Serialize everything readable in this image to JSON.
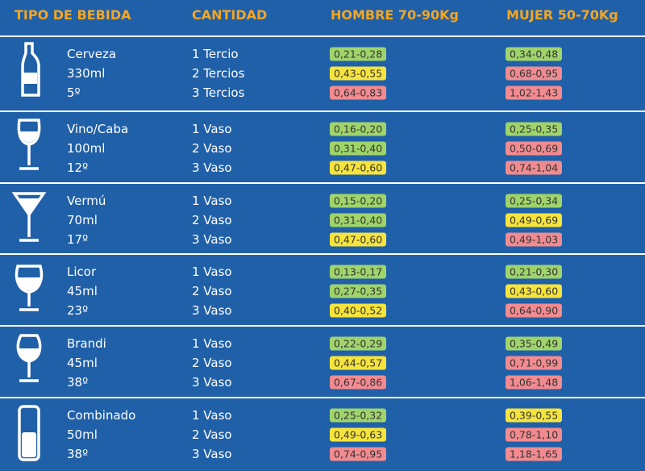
{
  "headers": [
    "TIPO DE BEBIDA",
    "CANTIDAD",
    "HOMBRE 70-90Kg",
    "MUJER 50-70Kg"
  ],
  "rows": [
    {
      "drink": [
        "Cerveza",
        "330ml",
        "5º"
      ],
      "quantities": [
        "1 Tercio",
        "2 Tercios",
        "3 Tercios"
      ],
      "men": [
        {
          "text": "0,21-0,28",
          "color": "#9fd46b"
        },
        {
          "text": "0,43-0,55",
          "color": "#f6e43c"
        },
        {
          "text": "0,64-0,83",
          "color": "#f28b90"
        }
      ],
      "women": [
        {
          "text": "0,34-0,48",
          "color": "#9fd46b"
        },
        {
          "text": "0,68-0,95",
          "color": "#f28b90"
        },
        {
          "text": "1,02-1,43",
          "color": "#f28b90"
        }
      ]
    },
    {
      "drink": [
        "Vino/Caba",
        "100ml",
        "12º"
      ],
      "quantities": [
        "1 Vaso",
        "2 Vaso",
        "3 Vaso"
      ],
      "men": [
        {
          "text": "0,16-0,20",
          "color": "#9fd46b"
        },
        {
          "text": "0,31-0,40",
          "color": "#9fd46b"
        },
        {
          "text": "0,47-0,60",
          "color": "#f6e43c"
        }
      ],
      "women": [
        {
          "text": "0,25-0,35",
          "color": "#9fd46b"
        },
        {
          "text": "0,50-0,69",
          "color": "#f28b90"
        },
        {
          "text": "0,74-1,04",
          "color": "#f28b90"
        }
      ]
    },
    {
      "drink": [
        "Vermú",
        "70ml",
        "17º"
      ],
      "quantities": [
        "1 Vaso",
        "2 Vaso",
        "3 Vaso"
      ],
      "men": [
        {
          "text": "0,15-0,20",
          "color": "#9fd46b"
        },
        {
          "text": "0,31-0,40",
          "color": "#9fd46b"
        },
        {
          "text": "0,47-0,60",
          "color": "#f6e43c"
        }
      ],
      "women": [
        {
          "text": "0,25-0,34",
          "color": "#9fd46b"
        },
        {
          "text": "0,49-0,69",
          "color": "#f6e43c"
        },
        {
          "text": "0,49-1,03",
          "color": "#f28b90"
        }
      ]
    },
    {
      "drink": [
        "Licor",
        "45ml",
        "23º"
      ],
      "quantities": [
        "1 Vaso",
        "2 Vaso",
        "3 Vaso"
      ],
      "men": [
        {
          "text": "0,13-0,17",
          "color": "#9fd46b"
        },
        {
          "text": "0,27-0,35",
          "color": "#9fd46b"
        },
        {
          "text": "0,40-0,52",
          "color": "#f6e43c"
        }
      ],
      "women": [
        {
          "text": "0,21-0,30",
          "color": "#9fd46b"
        },
        {
          "text": "0,43-0,60",
          "color": "#f6e43c"
        },
        {
          "text": "0,64-0,90",
          "color": "#f28b90"
        }
      ]
    },
    {
      "drink": [
        "Brandi",
        "45ml",
        "38º"
      ],
      "quantities": [
        "1 Vaso",
        "2 Vaso",
        "3 Vaso"
      ],
      "men": [
        {
          "text": "0,22-0,29",
          "color": "#9fd46b"
        },
        {
          "text": "0,44-0,57",
          "color": "#f6e43c"
        },
        {
          "text": "0,67-0,86",
          "color": "#f28b90"
        }
      ],
      "women": [
        {
          "text": "0,35-0,49",
          "color": "#9fd46b"
        },
        {
          "text": "0,71-0,99",
          "color": "#f28b90"
        },
        {
          "text": "1,06-1,48",
          "color": "#f28b90"
        }
      ]
    },
    {
      "drink": [
        "Combinado",
        "50ml",
        "38º"
      ],
      "quantities": [
        "1 Vaso",
        "2 Vaso",
        "3 Vaso"
      ],
      "men": [
        {
          "text": "0,25-0,32",
          "color": "#9fd46b"
        },
        {
          "text": "0,49-0,63",
          "color": "#f6e43c"
        },
        {
          "text": "0,74-0,95",
          "color": "#f28b90"
        }
      ],
      "women": [
        {
          "text": "0,39-0,55",
          "color": "#f6e43c"
        },
        {
          "text": "0,78-1,10",
          "color": "#f28b90"
        },
        {
          "text": "1,18-1,65",
          "color": "#f28b90"
        }
      ]
    }
  ]
}
